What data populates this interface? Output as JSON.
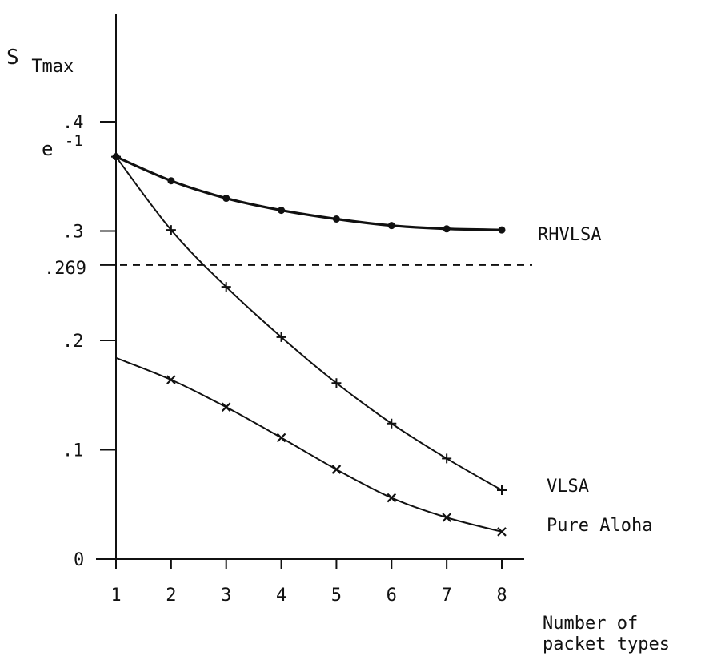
{
  "chart_data": {
    "type": "line",
    "ylabel_base": "S",
    "ylabel_sub": "Tmax",
    "xlabel_line1": "Number of",
    "xlabel_line2": "packet types",
    "x": [
      1,
      2,
      3,
      4,
      5,
      6,
      7,
      8
    ],
    "xlim": [
      1,
      8
    ],
    "ylim": [
      0,
      0.4
    ],
    "x_ticks": [
      "1",
      "2",
      "3",
      "4",
      "5",
      "6",
      "7",
      "8"
    ],
    "y_ticks": [
      {
        "value": 0,
        "label": "0"
      },
      {
        "value": 0.1,
        "label": ".1"
      },
      {
        "value": 0.2,
        "label": ".2"
      },
      {
        "value": 0.3,
        "label": ".3"
      },
      {
        "value": 0.4,
        "label": ".4"
      }
    ],
    "special_y_labels": [
      {
        "value": 0.3679,
        "label_base": "e",
        "label_sup": "-1"
      },
      {
        "value": 0.269,
        "label": ".269"
      }
    ],
    "reference_line": {
      "y": 0.269,
      "style": "dashed"
    },
    "grid": false,
    "series": [
      {
        "name": "RHVLSA",
        "marker": "dot",
        "heavy": true,
        "values": [
          0.368,
          0.346,
          0.33,
          0.319,
          0.311,
          0.305,
          0.302,
          0.301
        ]
      },
      {
        "name": "VLSA",
        "marker": "plus",
        "heavy": false,
        "values": [
          0.368,
          0.301,
          0.249,
          0.203,
          0.161,
          0.124,
          0.092,
          0.063
        ]
      },
      {
        "name": "Pure Aloha",
        "marker": "cross",
        "heavy": false,
        "start": {
          "x": 1,
          "y": 0.184
        },
        "x": [
          2,
          3,
          4,
          5,
          6,
          7,
          8
        ],
        "values": [
          0.164,
          0.139,
          0.111,
          0.082,
          0.056,
          0.038,
          0.025
        ]
      }
    ]
  }
}
